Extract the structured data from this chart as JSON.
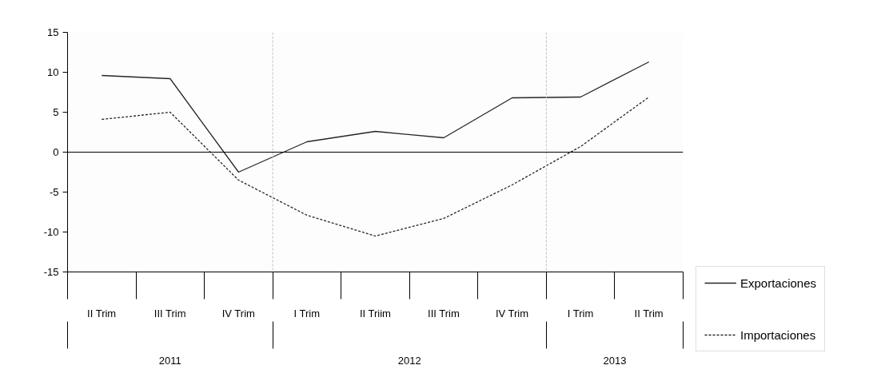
{
  "chart_data": {
    "type": "line",
    "categories": [
      "II Trim",
      "III Trim",
      "IV Trim",
      "I Trim",
      "II Triim",
      "III Trim",
      "IV Trim",
      "I Trim",
      "II Trim"
    ],
    "ylim": [
      -15,
      15
    ],
    "yticks": [
      -15,
      -10,
      -5,
      0,
      5,
      10,
      15
    ],
    "series": [
      {
        "name": "Exportaciones",
        "color": "#262626",
        "line_style": "solid",
        "values": [
          9.6,
          9.2,
          -2.5,
          1.3,
          2.6,
          1.8,
          6.8,
          6.9,
          11.3
        ]
      },
      {
        "name": "Importaciones",
        "color": "#262626",
        "line_style": "dashed",
        "values": [
          4.1,
          5.0,
          -3.5,
          -7.9,
          -10.5,
          -8.3,
          -4.1,
          0.7,
          6.9
        ]
      }
    ],
    "ref_lines": [
      {
        "axis": "y",
        "value": 0,
        "color": "#000000",
        "line_style": "solid"
      }
    ],
    "annotations": [
      "2011",
      "2012",
      "2013"
    ],
    "grid": false,
    "marker": "none",
    "legend": "right"
  }
}
